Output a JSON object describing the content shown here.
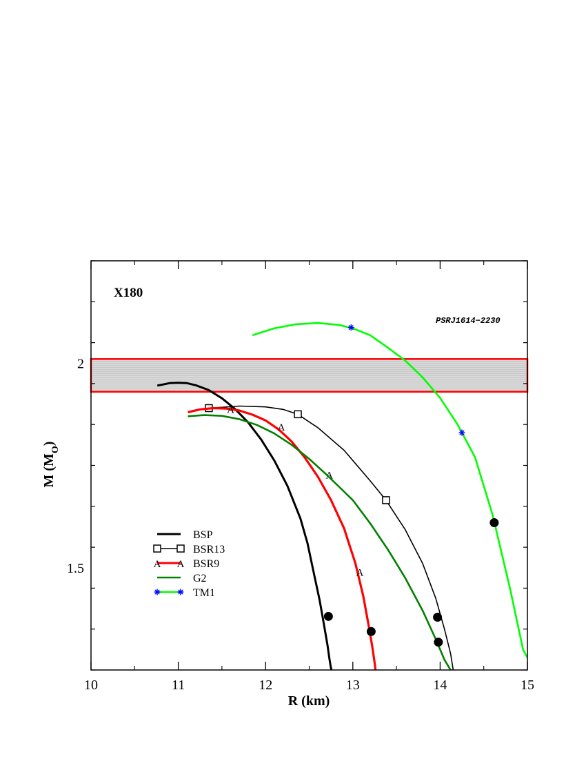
{
  "chart_data": {
    "type": "line",
    "panel_label": "X180",
    "band_label": "PSRJ1614−2230",
    "xlabel": "R (km)",
    "ylabel_main": "M (M",
    "ylabel_sub": "O",
    "ylabel_close": ")",
    "xlim": [
      10,
      15
    ],
    "ylim": [
      1.25,
      2.25
    ],
    "x_ticks": [
      "10",
      "11",
      "12",
      "13",
      "14",
      "15"
    ],
    "y_ticks": [
      {
        "value": 1.5,
        "label": "1.5"
      },
      {
        "value": 2.0,
        "label": "2"
      }
    ],
    "grid": false,
    "legend_position": "lower-left",
    "band": {
      "ymin": 1.93,
      "ymax": 2.01,
      "color": "#ff0000"
    },
    "series": [
      {
        "name": "BSP",
        "color": "#000000",
        "width": 3,
        "marker": "none",
        "marker_points": [],
        "x": [
          10.76,
          10.9,
          11.0,
          11.1,
          11.2,
          11.35,
          11.5,
          11.65,
          11.8,
          11.95,
          12.1,
          12.25,
          12.4,
          12.48,
          12.55,
          12.62,
          12.67,
          12.71,
          12.73,
          12.745,
          12.755
        ],
        "y": [
          1.945,
          1.951,
          1.952,
          1.951,
          1.946,
          1.934,
          1.914,
          1.888,
          1.855,
          1.813,
          1.762,
          1.7,
          1.62,
          1.56,
          1.49,
          1.42,
          1.36,
          1.31,
          1.28,
          1.26,
          1.25
        ]
      },
      {
        "name": "BSR13",
        "color": "#000000",
        "width": 1.6,
        "marker": "square",
        "marker_points": [
          [
            11.35,
            1.89
          ],
          [
            12.37,
            1.875
          ],
          [
            13.38,
            1.665
          ]
        ],
        "x": [
          11.35,
          11.7,
          12.0,
          12.2,
          12.37,
          12.6,
          12.9,
          13.2,
          13.38,
          13.6,
          13.8,
          13.95,
          14.05,
          14.12,
          14.15
        ],
        "y": [
          1.89,
          1.895,
          1.893,
          1.887,
          1.875,
          1.842,
          1.787,
          1.712,
          1.665,
          1.593,
          1.51,
          1.425,
          1.35,
          1.29,
          1.25
        ]
      },
      {
        "name": "BSR9",
        "color": "#ff0000",
        "width": 3.2,
        "marker": "A",
        "marker_points": [
          [
            11.6,
            1.888
          ],
          [
            12.18,
            1.845
          ],
          [
            12.73,
            1.728
          ],
          [
            13.08,
            1.49
          ]
        ],
        "x": [
          11.11,
          11.25,
          11.4,
          11.55,
          11.7,
          11.85,
          12.0,
          12.15,
          12.3,
          12.45,
          12.6,
          12.75,
          12.9,
          13.03,
          13.12,
          13.18,
          13.22,
          13.245,
          13.26
        ],
        "y": [
          1.88,
          1.887,
          1.89,
          1.889,
          1.884,
          1.874,
          1.86,
          1.838,
          1.808,
          1.769,
          1.722,
          1.665,
          1.596,
          1.51,
          1.43,
          1.36,
          1.31,
          1.275,
          1.25
        ]
      },
      {
        "name": "G2",
        "color": "#008000",
        "width": 2.6,
        "marker": "none",
        "marker_points": [],
        "x": [
          11.11,
          11.3,
          11.5,
          11.7,
          11.9,
          12.1,
          12.3,
          12.5,
          12.7,
          12.9,
          13.0,
          13.2,
          13.4,
          13.6,
          13.8,
          13.95,
          14.05,
          14.12
        ],
        "y": [
          1.87,
          1.873,
          1.871,
          1.863,
          1.849,
          1.828,
          1.8,
          1.766,
          1.727,
          1.686,
          1.665,
          1.608,
          1.545,
          1.475,
          1.395,
          1.325,
          1.275,
          1.25
        ]
      },
      {
        "name": "TM1",
        "color": "#00ff00",
        "width": 2.6,
        "marker": "star",
        "marker_color": "#0000ff",
        "marker_points": [
          [
            12.98,
            2.087
          ],
          [
            14.25,
            1.83
          ]
        ],
        "x": [
          11.85,
          12.1,
          12.35,
          12.6,
          12.85,
          13.0,
          13.2,
          13.4,
          13.6,
          13.8,
          14.0,
          14.2,
          14.4,
          14.6,
          14.8,
          14.95,
          15.0
        ],
        "y": [
          2.068,
          2.085,
          2.095,
          2.098,
          2.093,
          2.085,
          2.068,
          2.038,
          2.006,
          1.965,
          1.915,
          1.85,
          1.77,
          1.63,
          1.45,
          1.3,
          1.28
        ]
      }
    ],
    "dots": [
      {
        "x": 12.72,
        "y": 1.381
      },
      {
        "x": 13.21,
        "y": 1.344
      },
      {
        "x": 13.97,
        "y": 1.379
      },
      {
        "x": 13.98,
        "y": 1.318
      },
      {
        "x": 14.62,
        "y": 1.61
      }
    ]
  }
}
